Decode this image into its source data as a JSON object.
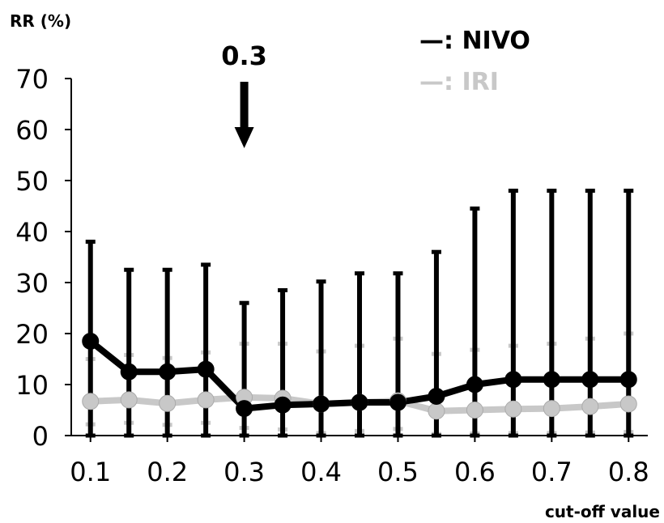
{
  "chart_data": {
    "type": "line",
    "ylabel": "RR (%)",
    "xlabel": "cut-off value",
    "ylim": [
      0,
      70
    ],
    "yticks": [
      0,
      10,
      20,
      30,
      40,
      50,
      60,
      70
    ],
    "xlim": [
      0.075,
      0.825
    ],
    "xticks": [
      0.1,
      0.2,
      0.3,
      0.4,
      0.5,
      0.6,
      0.7,
      0.8
    ],
    "xtick_labels": [
      "0.1",
      "0.2",
      "0.3",
      "0.4",
      "0.5",
      "0.6",
      "0.7",
      "0.8"
    ],
    "grid": false,
    "legend_position": "top-right",
    "annotation": {
      "text": "0.3",
      "x": 0.3,
      "arrow": "down"
    },
    "x": [
      0.1,
      0.15,
      0.2,
      0.25,
      0.3,
      0.35,
      0.4,
      0.45,
      0.5,
      0.55,
      0.6,
      0.65,
      0.7,
      0.75,
      0.8
    ],
    "series": [
      {
        "name": ": NIVO",
        "legend_prefix": "—",
        "color": "#000000",
        "values": [
          18.5,
          12.5,
          12.5,
          13,
          5.3,
          6,
          6.2,
          6.5,
          6.5,
          7.7,
          10,
          11,
          11,
          11,
          11
        ],
        "error_low": [
          0,
          0,
          0,
          0,
          0,
          0,
          0,
          0,
          0,
          0,
          0,
          0,
          0,
          0,
          0
        ],
        "error_high": [
          38,
          32.5,
          32.5,
          33.5,
          26,
          28.5,
          30.2,
          31.8,
          31.8,
          36,
          44.5,
          48,
          48,
          48,
          48
        ]
      },
      {
        "name": ": IRI",
        "legend_prefix": "—",
        "color": "#c8c8c8",
        "values": [
          6.7,
          7,
          6.3,
          7,
          7.5,
          7.3,
          6.2,
          6.5,
          6.8,
          4.8,
          5,
          5.2,
          5.3,
          5.7,
          6.2
        ],
        "error_low": [
          2.2,
          2.5,
          2.1,
          2.5,
          1.5,
          1.2,
          0.5,
          0.9,
          1.3,
          0.3,
          0.4,
          0.5,
          0.5,
          0.6,
          0.7
        ],
        "error_high": [
          15,
          15.8,
          15.2,
          16.3,
          18,
          18,
          16.5,
          17.6,
          19,
          16,
          16.8,
          17.6,
          18,
          19,
          20
        ]
      }
    ]
  }
}
